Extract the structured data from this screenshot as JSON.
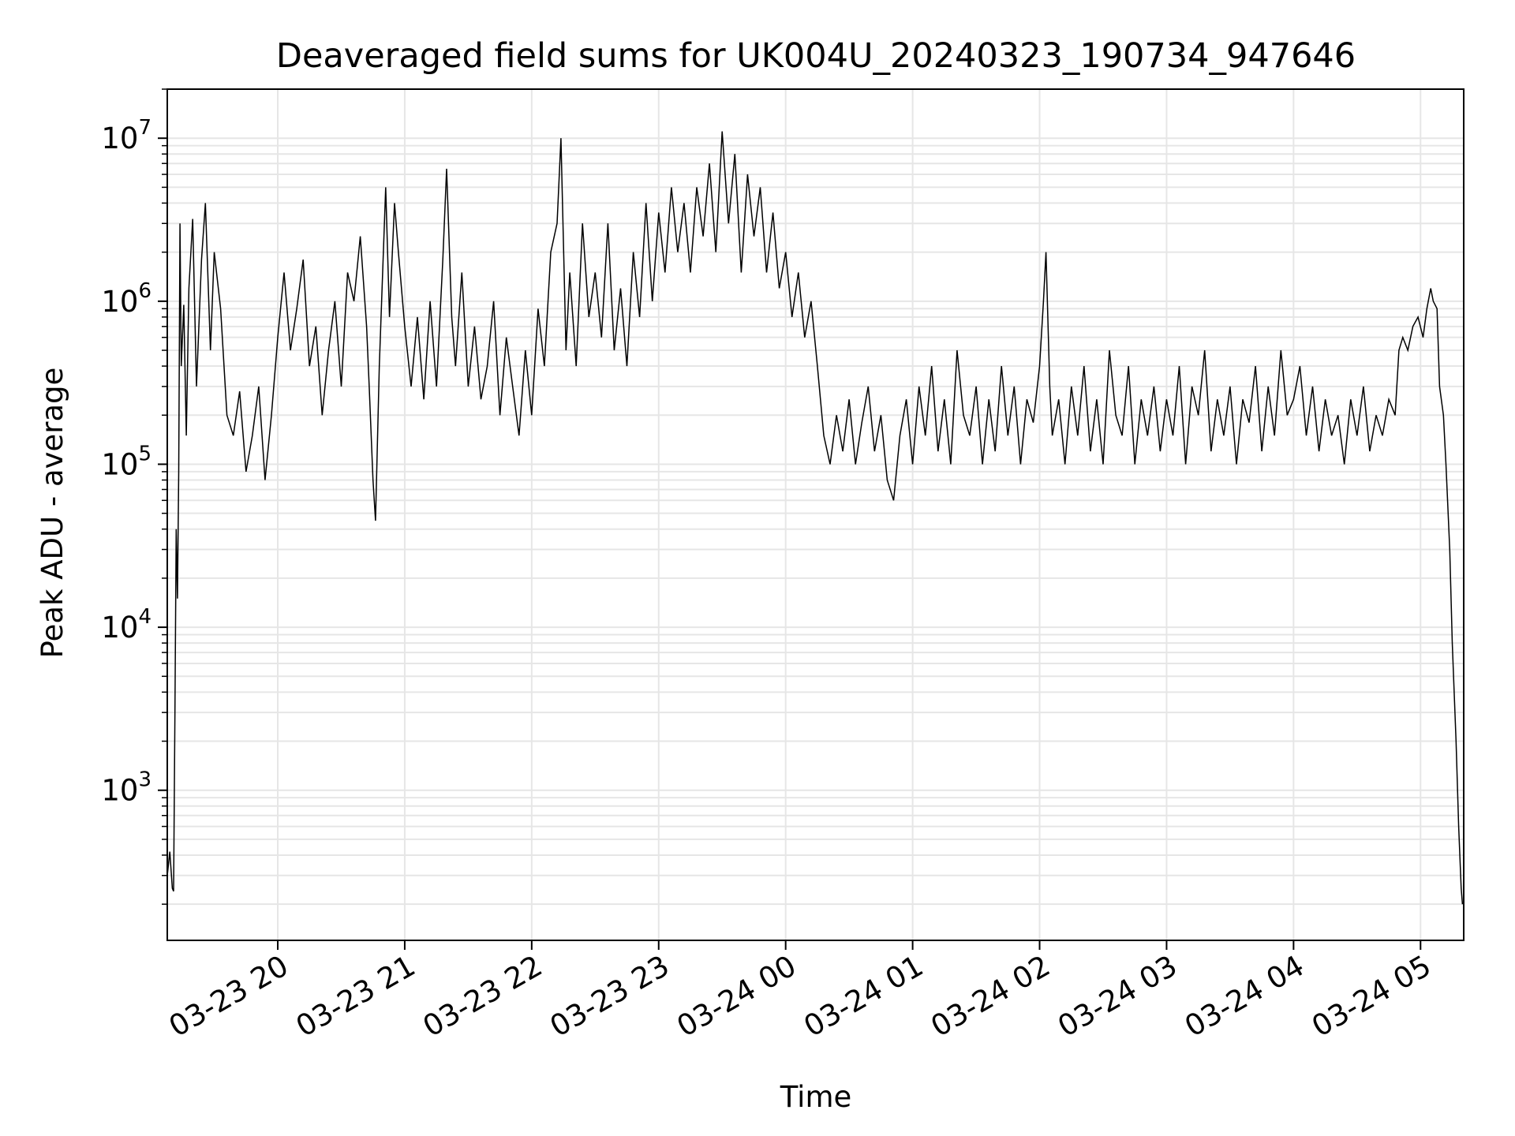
{
  "chart_data": {
    "type": "line",
    "title": "Deaveraged field sums for UK004U_20240323_190734_947646",
    "xlabel": "Time",
    "ylabel": "Peak ADU - average",
    "y_scale": "log",
    "ylim": [
      120,
      20000000
    ],
    "x_range_hours": [
      19.13,
      29.34
    ],
    "x_ticks": [
      {
        "hour": 20,
        "label": "03-23 20"
      },
      {
        "hour": 21,
        "label": "03-23 21"
      },
      {
        "hour": 22,
        "label": "03-23 22"
      },
      {
        "hour": 23,
        "label": "03-23 23"
      },
      {
        "hour": 24,
        "label": "03-24 00"
      },
      {
        "hour": 25,
        "label": "03-24 01"
      },
      {
        "hour": 26,
        "label": "03-24 02"
      },
      {
        "hour": 27,
        "label": "03-24 03"
      },
      {
        "hour": 28,
        "label": "03-24 04"
      },
      {
        "hour": 29,
        "label": "03-24 05"
      }
    ],
    "y_ticks": [
      {
        "value": 1000,
        "base": "10",
        "exp": "3"
      },
      {
        "value": 10000,
        "base": "10",
        "exp": "4"
      },
      {
        "value": 100000,
        "base": "10",
        "exp": "5"
      },
      {
        "value": 1000000,
        "base": "10",
        "exp": "6"
      },
      {
        "value": 10000000,
        "base": "10",
        "exp": "7"
      }
    ],
    "grid": true,
    "line_color": "#000000",
    "grid_color": "#e6e6e6",
    "series": [
      {
        "points": [
          [
            19.13,
            300
          ],
          [
            19.15,
            420
          ],
          [
            19.17,
            250
          ],
          [
            19.18,
            240
          ],
          [
            19.19,
            3000
          ],
          [
            19.2,
            40000
          ],
          [
            19.21,
            15000
          ],
          [
            19.22,
            90000
          ],
          [
            19.23,
            3000000
          ],
          [
            19.24,
            400000
          ],
          [
            19.26,
            950000
          ],
          [
            19.28,
            150000
          ],
          [
            19.3,
            1200000
          ],
          [
            19.33,
            3200000
          ],
          [
            19.36,
            300000
          ],
          [
            19.4,
            1800000
          ],
          [
            19.43,
            4000000
          ],
          [
            19.47,
            500000
          ],
          [
            19.5,
            2000000
          ],
          [
            19.55,
            900000
          ],
          [
            19.6,
            200000
          ],
          [
            19.65,
            150000
          ],
          [
            19.7,
            280000
          ],
          [
            19.75,
            90000
          ],
          [
            19.8,
            150000
          ],
          [
            19.85,
            300000
          ],
          [
            19.9,
            80000
          ],
          [
            19.95,
            200000
          ],
          [
            20.0,
            600000
          ],
          [
            20.05,
            1500000
          ],
          [
            20.1,
            500000
          ],
          [
            20.15,
            900000
          ],
          [
            20.2,
            1800000
          ],
          [
            20.25,
            400000
          ],
          [
            20.3,
            700000
          ],
          [
            20.35,
            200000
          ],
          [
            20.4,
            500000
          ],
          [
            20.45,
            1000000
          ],
          [
            20.5,
            300000
          ],
          [
            20.55,
            1500000
          ],
          [
            20.6,
            1000000
          ],
          [
            20.65,
            2500000
          ],
          [
            20.7,
            700000
          ],
          [
            20.72,
            300000
          ],
          [
            20.75,
            80000
          ],
          [
            20.77,
            45000
          ],
          [
            20.8,
            400000
          ],
          [
            20.85,
            5000000
          ],
          [
            20.88,
            800000
          ],
          [
            20.92,
            4000000
          ],
          [
            20.95,
            2000000
          ],
          [
            21.0,
            700000
          ],
          [
            21.05,
            300000
          ],
          [
            21.1,
            800000
          ],
          [
            21.15,
            250000
          ],
          [
            21.2,
            1000000
          ],
          [
            21.25,
            300000
          ],
          [
            21.3,
            1800000
          ],
          [
            21.33,
            6500000
          ],
          [
            21.37,
            800000
          ],
          [
            21.4,
            400000
          ],
          [
            21.45,
            1500000
          ],
          [
            21.5,
            300000
          ],
          [
            21.55,
            700000
          ],
          [
            21.6,
            250000
          ],
          [
            21.65,
            400000
          ],
          [
            21.7,
            1000000
          ],
          [
            21.75,
            200000
          ],
          [
            21.8,
            600000
          ],
          [
            21.85,
            300000
          ],
          [
            21.9,
            150000
          ],
          [
            21.95,
            500000
          ],
          [
            22.0,
            200000
          ],
          [
            22.05,
            900000
          ],
          [
            22.1,
            400000
          ],
          [
            22.15,
            2000000
          ],
          [
            22.2,
            3000000
          ],
          [
            22.23,
            10000000
          ],
          [
            22.27,
            500000
          ],
          [
            22.3,
            1500000
          ],
          [
            22.35,
            400000
          ],
          [
            22.4,
            3000000
          ],
          [
            22.45,
            800000
          ],
          [
            22.5,
            1500000
          ],
          [
            22.55,
            600000
          ],
          [
            22.6,
            3000000
          ],
          [
            22.65,
            500000
          ],
          [
            22.7,
            1200000
          ],
          [
            22.75,
            400000
          ],
          [
            22.8,
            2000000
          ],
          [
            22.85,
            800000
          ],
          [
            22.9,
            4000000
          ],
          [
            22.95,
            1000000
          ],
          [
            23.0,
            3500000
          ],
          [
            23.05,
            1500000
          ],
          [
            23.1,
            5000000
          ],
          [
            23.15,
            2000000
          ],
          [
            23.2,
            4000000
          ],
          [
            23.25,
            1500000
          ],
          [
            23.3,
            5000000
          ],
          [
            23.35,
            2500000
          ],
          [
            23.4,
            7000000
          ],
          [
            23.45,
            2000000
          ],
          [
            23.5,
            11000000
          ],
          [
            23.55,
            3000000
          ],
          [
            23.6,
            8000000
          ],
          [
            23.65,
            1500000
          ],
          [
            23.7,
            6000000
          ],
          [
            23.75,
            2500000
          ],
          [
            23.8,
            5000000
          ],
          [
            23.85,
            1500000
          ],
          [
            23.9,
            3500000
          ],
          [
            23.95,
            1200000
          ],
          [
            24.0,
            2000000
          ],
          [
            24.05,
            800000
          ],
          [
            24.1,
            1500000
          ],
          [
            24.15,
            600000
          ],
          [
            24.2,
            1000000
          ],
          [
            24.25,
            400000
          ],
          [
            24.3,
            150000
          ],
          [
            24.35,
            100000
          ],
          [
            24.4,
            200000
          ],
          [
            24.45,
            120000
          ],
          [
            24.5,
            250000
          ],
          [
            24.55,
            100000
          ],
          [
            24.6,
            180000
          ],
          [
            24.65,
            300000
          ],
          [
            24.7,
            120000
          ],
          [
            24.75,
            200000
          ],
          [
            24.8,
            80000
          ],
          [
            24.85,
            60000
          ],
          [
            24.9,
            150000
          ],
          [
            24.95,
            250000
          ],
          [
            25.0,
            100000
          ],
          [
            25.05,
            300000
          ],
          [
            25.1,
            150000
          ],
          [
            25.15,
            400000
          ],
          [
            25.2,
            120000
          ],
          [
            25.25,
            250000
          ],
          [
            25.3,
            100000
          ],
          [
            25.35,
            500000
          ],
          [
            25.4,
            200000
          ],
          [
            25.45,
            150000
          ],
          [
            25.5,
            300000
          ],
          [
            25.55,
            100000
          ],
          [
            25.6,
            250000
          ],
          [
            25.65,
            120000
          ],
          [
            25.7,
            400000
          ],
          [
            25.75,
            150000
          ],
          [
            25.8,
            300000
          ],
          [
            25.85,
            100000
          ],
          [
            25.9,
            250000
          ],
          [
            25.95,
            180000
          ],
          [
            26.0,
            400000
          ],
          [
            26.03,
            1000000
          ],
          [
            26.05,
            2000000
          ],
          [
            26.08,
            300000
          ],
          [
            26.1,
            150000
          ],
          [
            26.15,
            250000
          ],
          [
            26.2,
            100000
          ],
          [
            26.25,
            300000
          ],
          [
            26.3,
            150000
          ],
          [
            26.35,
            400000
          ],
          [
            26.4,
            120000
          ],
          [
            26.45,
            250000
          ],
          [
            26.5,
            100000
          ],
          [
            26.55,
            500000
          ],
          [
            26.6,
            200000
          ],
          [
            26.65,
            150000
          ],
          [
            26.7,
            400000
          ],
          [
            26.75,
            100000
          ],
          [
            26.8,
            250000
          ],
          [
            26.85,
            150000
          ],
          [
            26.9,
            300000
          ],
          [
            26.95,
            120000
          ],
          [
            27.0,
            250000
          ],
          [
            27.05,
            150000
          ],
          [
            27.1,
            400000
          ],
          [
            27.15,
            100000
          ],
          [
            27.2,
            300000
          ],
          [
            27.25,
            200000
          ],
          [
            27.3,
            500000
          ],
          [
            27.35,
            120000
          ],
          [
            27.4,
            250000
          ],
          [
            27.45,
            150000
          ],
          [
            27.5,
            300000
          ],
          [
            27.55,
            100000
          ],
          [
            27.6,
            250000
          ],
          [
            27.65,
            180000
          ],
          [
            27.7,
            400000
          ],
          [
            27.75,
            120000
          ],
          [
            27.8,
            300000
          ],
          [
            27.85,
            150000
          ],
          [
            27.9,
            500000
          ],
          [
            27.95,
            200000
          ],
          [
            28.0,
            250000
          ],
          [
            28.05,
            400000
          ],
          [
            28.1,
            150000
          ],
          [
            28.15,
            300000
          ],
          [
            28.2,
            120000
          ],
          [
            28.25,
            250000
          ],
          [
            28.3,
            150000
          ],
          [
            28.35,
            200000
          ],
          [
            28.4,
            100000
          ],
          [
            28.45,
            250000
          ],
          [
            28.5,
            150000
          ],
          [
            28.55,
            300000
          ],
          [
            28.6,
            120000
          ],
          [
            28.65,
            200000
          ],
          [
            28.7,
            150000
          ],
          [
            28.75,
            250000
          ],
          [
            28.8,
            200000
          ],
          [
            28.83,
            500000
          ],
          [
            28.86,
            600000
          ],
          [
            28.9,
            500000
          ],
          [
            28.94,
            700000
          ],
          [
            28.98,
            800000
          ],
          [
            29.02,
            600000
          ],
          [
            29.05,
            900000
          ],
          [
            29.08,
            1200000
          ],
          [
            29.1,
            1000000
          ],
          [
            29.13,
            900000
          ],
          [
            29.15,
            300000
          ],
          [
            29.18,
            200000
          ],
          [
            29.2,
            100000
          ],
          [
            29.23,
            30000
          ],
          [
            29.25,
            8000
          ],
          [
            29.28,
            2000
          ],
          [
            29.3,
            600
          ],
          [
            29.32,
            250
          ],
          [
            29.33,
            200
          ]
        ]
      }
    ]
  }
}
